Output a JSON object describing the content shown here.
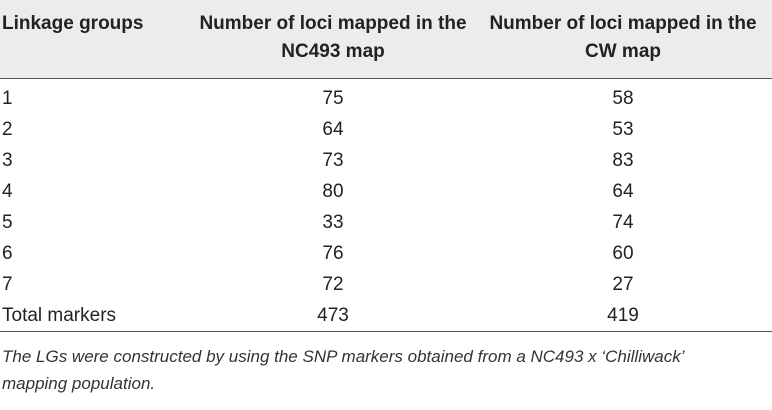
{
  "table": {
    "headers": [
      "Linkage groups",
      "Number of loci mapped in the NC493 map",
      "Number of loci mapped in the CW map"
    ],
    "rows": [
      {
        "group": "1",
        "nc493": "75",
        "cw": "58"
      },
      {
        "group": "2",
        "nc493": "64",
        "cw": "53"
      },
      {
        "group": "3",
        "nc493": "73",
        "cw": "83"
      },
      {
        "group": "4",
        "nc493": "80",
        "cw": "64"
      },
      {
        "group": "5",
        "nc493": "33",
        "cw": "74"
      },
      {
        "group": "6",
        "nc493": "76",
        "cw": "60"
      },
      {
        "group": "7",
        "nc493": "72",
        "cw": "27"
      },
      {
        "group": "Total markers",
        "nc493": "473",
        "cw": "419"
      }
    ],
    "footnote": "The LGs were constructed by using the SNP markers obtained from a NC493 x ‘Chilliwack’ mapping population."
  }
}
